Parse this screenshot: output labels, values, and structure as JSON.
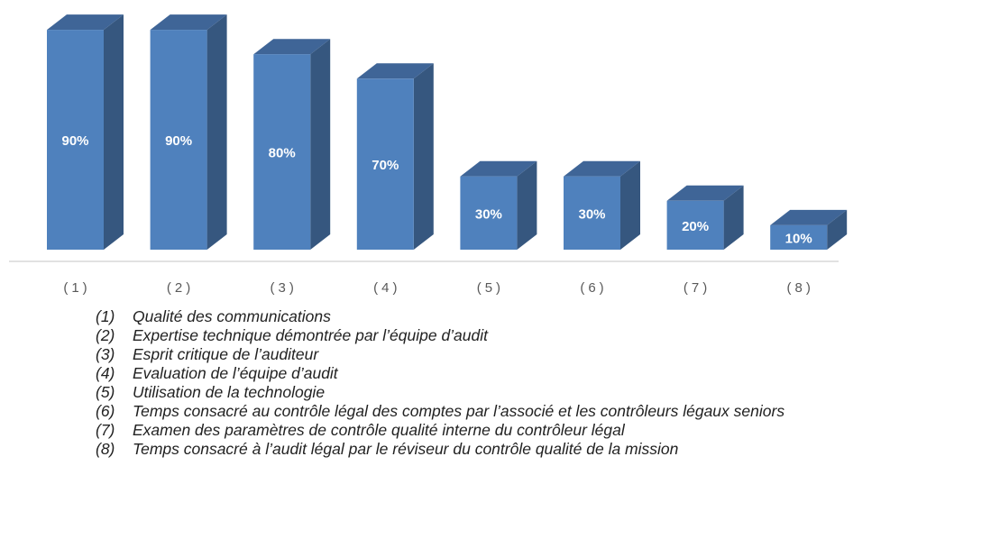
{
  "chart_data": {
    "type": "bar3d",
    "categories": [
      "(1)",
      "(2)",
      "(3)",
      "(4)",
      "(5)",
      "(6)",
      "(7)",
      "(8)"
    ],
    "values": [
      90,
      90,
      80,
      70,
      30,
      30,
      20,
      10
    ],
    "value_labels": [
      "90%",
      "90%",
      "80%",
      "70%",
      "30%",
      "30%",
      "20%",
      "10%"
    ],
    "color": "#4f81bd",
    "side_color": "#36577f",
    "top_color": "#3f6597"
  },
  "legend_items": [
    {
      "number": "(1)",
      "text": "Qualité des communications"
    },
    {
      "number": "(2)",
      "text": "Expertise technique démontrée par l’équipe d’audit"
    },
    {
      "number": "(3)",
      "text": "Esprit critique de l’auditeur"
    },
    {
      "number": "(4)",
      "text": "Evaluation de l’équipe d’audit"
    },
    {
      "number": "(5)",
      "text": "Utilisation de la technologie"
    },
    {
      "number": "(6)",
      "text": "Temps consacré au contrôle légal des comptes par l’associé et les contrôleurs légaux seniors"
    },
    {
      "number": "(7)",
      "text": "Examen des paramètres de contrôle qualité interne du contrôleur légal"
    },
    {
      "number": "(8)",
      "text": "Temps consacré à l’audit légal par le réviseur du contrôle qualité de la mission"
    }
  ]
}
